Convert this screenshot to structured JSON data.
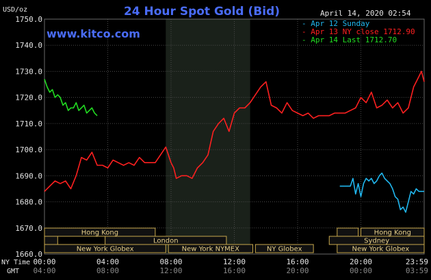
{
  "header": {
    "title": "24 Hour Spot Gold (Bid)",
    "website": "www.kitco.com",
    "date": "April 14, 2020 02:54",
    "currency": "USD/oz"
  },
  "chart_data": {
    "type": "line",
    "title": "24 Hour Spot Gold (Bid)",
    "ylabel": "USD/oz",
    "ylim": [
      1660,
      1750
    ],
    "xlim": [
      0,
      1440
    ],
    "y_ticks": [
      "1750.0",
      "1740.0",
      "1730.0",
      "1720.0",
      "1710.0",
      "1700.0",
      "1690.0",
      "1680.0",
      "1670.0",
      "1660.0"
    ],
    "x_ticks_ny": [
      "00:00",
      "04:00",
      "08:00",
      "12:00",
      "16:00",
      "20:00",
      "23:59"
    ],
    "x_ticks_gmt": [
      "04:00",
      "08:00",
      "12:00",
      "16:00",
      "20:00",
      "00:00",
      "03:59"
    ],
    "x_row_labels": [
      "NY Time",
      "GMT"
    ],
    "grid": true,
    "legend_position": "top-right",
    "highlight_band": {
      "start": 460,
      "end": 780
    },
    "series": [
      {
        "name": "Apr 12 Sunday",
        "color": "#21b8f0",
        "x": [
          1120,
          1160,
          1170,
          1180,
          1190,
          1200,
          1210,
          1220,
          1230,
          1240,
          1250,
          1260,
          1270,
          1280,
          1290,
          1300,
          1310,
          1320,
          1330,
          1340,
          1350,
          1360,
          1370,
          1380,
          1390,
          1400,
          1410,
          1420,
          1430,
          1440
        ],
        "y": [
          1686,
          1686,
          1689,
          1683,
          1687,
          1682,
          1687,
          1689,
          1688,
          1689,
          1687,
          1688,
          1690,
          1691,
          1689,
          1688,
          1687,
          1685,
          1682,
          1681,
          1677,
          1678,
          1676,
          1680,
          1684,
          1683,
          1685,
          1684,
          1684,
          1684
        ]
      },
      {
        "name": "Apr 13 NY close 1712.90",
        "color": "#ff2020",
        "x": [
          0,
          20,
          40,
          60,
          80,
          100,
          120,
          140,
          160,
          180,
          200,
          220,
          240,
          260,
          280,
          300,
          320,
          340,
          360,
          380,
          400,
          420,
          440,
          460,
          480,
          490,
          500,
          520,
          540,
          560,
          580,
          600,
          620,
          640,
          660,
          680,
          700,
          720,
          740,
          760,
          780,
          800,
          820,
          840,
          860,
          880,
          900,
          920,
          940,
          960,
          980,
          1000,
          1020,
          1040,
          1060,
          1080,
          1100,
          1120,
          1140,
          1160,
          1180,
          1200,
          1220,
          1240,
          1260,
          1280,
          1300,
          1320,
          1340,
          1360,
          1380,
          1400,
          1420,
          1430,
          1440
        ],
        "y": [
          1684,
          1686,
          1688,
          1687,
          1688,
          1685,
          1690,
          1697,
          1696,
          1699,
          1694,
          1694,
          1693,
          1696,
          1695,
          1694,
          1695,
          1694,
          1697,
          1695,
          1695,
          1695,
          1698,
          1701,
          1695,
          1693,
          1689,
          1690,
          1690,
          1689,
          1693,
          1695,
          1698,
          1707,
          1710,
          1712,
          1707,
          1714,
          1716,
          1716,
          1718,
          1721,
          1724,
          1726,
          1717,
          1716,
          1714,
          1718,
          1715,
          1714,
          1713,
          1714,
          1712,
          1713,
          1713,
          1713,
          1714,
          1714,
          1714,
          1715,
          1716,
          1720,
          1718,
          1722,
          1716,
          1717,
          1719,
          1716,
          1718,
          1714,
          1716,
          1724,
          1728,
          1730,
          1726
        ]
      },
      {
        "name": "Apr 14 Last 1712.70",
        "color": "#22dd22",
        "x": [
          0,
          10,
          20,
          30,
          40,
          50,
          60,
          70,
          80,
          90,
          100,
          110,
          120,
          130,
          140,
          150,
          160,
          170,
          180,
          190,
          200
        ],
        "y": [
          1727,
          1724,
          1722,
          1723,
          1720,
          1721,
          1720,
          1717,
          1718,
          1715,
          1716,
          1716,
          1718,
          1715,
          1716,
          1717,
          1714,
          1715,
          1716,
          1714,
          1713
        ]
      }
    ]
  },
  "legend": [
    {
      "label": "Apr 12 Sunday",
      "color": "#21b8f0"
    },
    {
      "label": "Apr 13 NY close 1712.90",
      "color": "#ff2020"
    },
    {
      "label": "Apr 14 Last 1712.70",
      "color": "#22dd22"
    }
  ],
  "sessions": [
    {
      "name": "Hong Kong",
      "row": 0,
      "start": 0,
      "end": 420
    },
    {
      "name": "London",
      "row": 1,
      "start": 230,
      "end": 690
    },
    {
      "name": "New York Globex",
      "row": 2,
      "start": 0,
      "end": 460
    },
    {
      "name": "New York NYMEX",
      "row": 2,
      "start": 470,
      "end": 790
    },
    {
      "name": "NY Globex",
      "row": 2,
      "start": 800,
      "end": 1020
    },
    {
      "name": "Hong Kong",
      "row": 0,
      "start": 1200,
      "end": 1440
    },
    {
      "name": "Sydney",
      "row": 1,
      "start": 1080,
      "end": 1440
    },
    {
      "name": "New York Globex",
      "row": 2,
      "start": 1110,
      "end": 1440
    }
  ],
  "session_stubs": [
    {
      "row": 1,
      "start": 0,
      "end": 50
    },
    {
      "row": 0,
      "start": 1110,
      "end": 1190
    }
  ],
  "colors": {
    "background": "#000000",
    "grid": "#4a4a4a",
    "band": "#1a211a",
    "session_fill": "#111111",
    "session_border": "#c9a94d",
    "title": "#4a6cf7"
  }
}
